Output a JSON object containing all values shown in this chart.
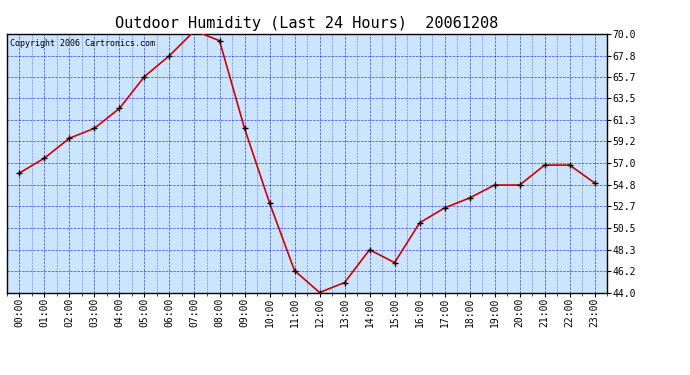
{
  "title": "Outdoor Humidity (Last 24 Hours)  20061208",
  "copyright_text": "Copyright 2006 Cartronics.com",
  "x_labels": [
    "00:00",
    "01:00",
    "02:00",
    "03:00",
    "04:00",
    "05:00",
    "06:00",
    "07:00",
    "08:00",
    "09:00",
    "10:00",
    "11:00",
    "12:00",
    "13:00",
    "14:00",
    "15:00",
    "16:00",
    "17:00",
    "18:00",
    "19:00",
    "20:00",
    "21:00",
    "22:00",
    "23:00"
  ],
  "y_values": [
    56.0,
    57.5,
    59.5,
    60.5,
    62.5,
    65.7,
    67.8,
    70.3,
    69.3,
    60.5,
    53.0,
    46.2,
    44.0,
    45.0,
    48.3,
    47.0,
    51.0,
    52.5,
    53.5,
    54.8,
    54.8,
    56.8,
    56.8,
    55.0
  ],
  "line_color": "#cc0000",
  "marker_color": "#000000",
  "bg_color": "#ffffff",
  "plot_bg_color": "#cce5ff",
  "grid_color": "#0000cc",
  "title_color": "#000000",
  "border_color": "#000000",
  "ylim": [
    44.0,
    70.0
  ],
  "yticks": [
    44.0,
    46.2,
    48.3,
    50.5,
    52.7,
    54.8,
    57.0,
    59.2,
    61.3,
    63.5,
    65.7,
    67.8,
    70.0
  ],
  "title_fontsize": 11,
  "tick_fontsize": 7,
  "copyright_fontsize": 6
}
